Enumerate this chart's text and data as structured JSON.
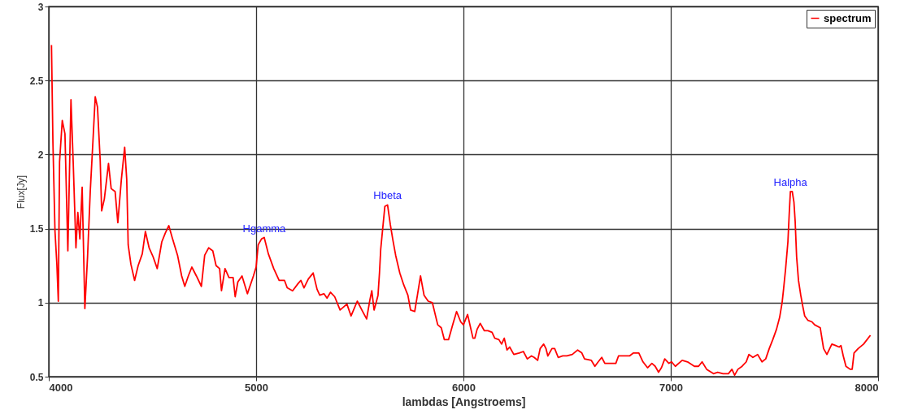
{
  "chart_data": {
    "type": "line",
    "xlabel": "lambdas  [Angstroems]",
    "ylabel": "Flux[Jy]",
    "xlim": [
      4000,
      8000
    ],
    "xticks": [
      4000,
      5000,
      6000,
      7000,
      8000
    ],
    "ylim": [
      0.5,
      3
    ],
    "yticks": [
      0.5,
      1,
      1.5,
      2,
      2.5,
      3
    ],
    "grid": true,
    "legend": "top right",
    "marker": "none",
    "line_style": "solid",
    "annotations": [
      {
        "text": "Hgamma",
        "x": 5039,
        "y": 1.44
      },
      {
        "text": "Hbeta",
        "x": 5634,
        "y": 1.66
      },
      {
        "text": "Halpha",
        "x": 7577,
        "y": 1.75
      }
    ],
    "series": [
      {
        "name": "spectrum",
        "color": "#ff0000",
        "x": [
          4013,
          4020,
          4030,
          4039,
          4046,
          4052,
          4065,
          4078,
          4092,
          4107,
          4118,
          4131,
          4140,
          4150,
          4161,
          4174,
          4187,
          4200,
          4213,
          4224,
          4235,
          4248,
          4255,
          4268,
          4288,
          4301,
          4320,
          4333,
          4350,
          4366,
          4376,
          4383,
          4396,
          4414,
          4431,
          4451,
          4466,
          4484,
          4503,
          4523,
          4545,
          4562,
          4579,
          4595,
          4621,
          4641,
          4656,
          4673,
          4690,
          4712,
          4736,
          4752,
          4771,
          4791,
          4807,
          4824,
          4833,
          4850,
          4869,
          4889,
          4899,
          4912,
          4932,
          4958,
          4987,
          5000,
          5010,
          5026,
          5039,
          5059,
          5085,
          5111,
          5137,
          5150,
          5176,
          5203,
          5216,
          5231,
          5252,
          5275,
          5294,
          5307,
          5327,
          5342,
          5359,
          5379,
          5405,
          5438,
          5458,
          5488,
          5510,
          5533,
          5549,
          5558,
          5569,
          5579,
          5588,
          5595,
          5601,
          5612,
          5621,
          5634,
          5647,
          5660,
          5673,
          5693,
          5712,
          5732,
          5745,
          5765,
          5778,
          5793,
          5810,
          5830,
          5850,
          5876,
          5893,
          5908,
          5928,
          5948,
          5967,
          5987,
          6000,
          6020,
          6046,
          6055,
          6066,
          6081,
          6101,
          6118,
          6138,
          6151,
          6171,
          6184,
          6197,
          6210,
          6223,
          6243,
          6269,
          6289,
          6308,
          6328,
          6341,
          6358,
          6370,
          6387,
          6398,
          6407,
          6427,
          6440,
          6457,
          6479,
          6499,
          6525,
          6551,
          6571,
          6584,
          6617,
          6634,
          6650,
          6667,
          6682,
          6709,
          6735,
          6748,
          6774,
          6801,
          6820,
          6846,
          6866,
          6888,
          6909,
          6925,
          6941,
          6955,
          6971,
          6991,
          7004,
          7022,
          7055,
          7081,
          7114,
          7134,
          7151,
          7173,
          7206,
          7226,
          7252,
          7278,
          7295,
          7308,
          7324,
          7344,
          7364,
          7377,
          7396,
          7419,
          7440,
          7458,
          7475,
          7492,
          7510,
          7525,
          7537,
          7544,
          7554,
          7565,
          7571,
          7577,
          7586,
          7594,
          7600,
          7607,
          7616,
          7627,
          7636,
          7646,
          7662,
          7681,
          7694,
          7721,
          7737,
          7753,
          7777,
          7795,
          7812,
          7821,
          7832,
          7845,
          7865,
          7875,
          7884,
          7904,
          7930,
          7963
        ],
        "values": [
          2.74,
          2.08,
          1.48,
          1.26,
          1.01,
          1.95,
          2.23,
          2.14,
          1.35,
          2.37,
          1.94,
          1.37,
          1.61,
          1.43,
          1.78,
          0.96,
          1.31,
          1.75,
          2.09,
          2.39,
          2.32,
          1.96,
          1.62,
          1.7,
          1.94,
          1.77,
          1.75,
          1.54,
          1.83,
          2.05,
          1.83,
          1.39,
          1.26,
          1.15,
          1.25,
          1.33,
          1.48,
          1.37,
          1.31,
          1.23,
          1.41,
          1.47,
          1.52,
          1.44,
          1.32,
          1.18,
          1.11,
          1.18,
          1.24,
          1.18,
          1.11,
          1.32,
          1.37,
          1.35,
          1.25,
          1.23,
          1.08,
          1.23,
          1.17,
          1.17,
          1.04,
          1.14,
          1.18,
          1.06,
          1.18,
          1.24,
          1.39,
          1.43,
          1.44,
          1.33,
          1.23,
          1.15,
          1.15,
          1.1,
          1.08,
          1.13,
          1.15,
          1.1,
          1.16,
          1.2,
          1.09,
          1.05,
          1.06,
          1.03,
          1.07,
          1.04,
          0.95,
          0.99,
          0.91,
          1.01,
          0.95,
          0.89,
          1.02,
          1.08,
          0.95,
          1.0,
          1.05,
          1.2,
          1.36,
          1.52,
          1.65,
          1.66,
          1.53,
          1.42,
          1.32,
          1.2,
          1.12,
          1.05,
          0.95,
          0.94,
          1.05,
          1.18,
          1.05,
          1.01,
          1.0,
          0.85,
          0.83,
          0.75,
          0.75,
          0.85,
          0.94,
          0.87,
          0.85,
          0.92,
          0.76,
          0.76,
          0.82,
          0.86,
          0.81,
          0.81,
          0.8,
          0.76,
          0.75,
          0.72,
          0.76,
          0.68,
          0.7,
          0.65,
          0.66,
          0.67,
          0.62,
          0.64,
          0.63,
          0.61,
          0.69,
          0.72,
          0.69,
          0.64,
          0.69,
          0.69,
          0.63,
          0.64,
          0.64,
          0.65,
          0.68,
          0.66,
          0.62,
          0.61,
          0.57,
          0.6,
          0.63,
          0.59,
          0.59,
          0.59,
          0.64,
          0.64,
          0.64,
          0.66,
          0.66,
          0.6,
          0.56,
          0.59,
          0.57,
          0.53,
          0.56,
          0.62,
          0.59,
          0.6,
          0.57,
          0.61,
          0.6,
          0.57,
          0.57,
          0.6,
          0.55,
          0.52,
          0.53,
          0.52,
          0.52,
          0.55,
          0.51,
          0.55,
          0.57,
          0.6,
          0.65,
          0.63,
          0.65,
          0.6,
          0.62,
          0.69,
          0.75,
          0.82,
          0.9,
          1.0,
          1.09,
          1.23,
          1.41,
          1.59,
          1.75,
          1.75,
          1.68,
          1.55,
          1.31,
          1.15,
          1.05,
          0.98,
          0.91,
          0.88,
          0.87,
          0.85,
          0.83,
          0.69,
          0.65,
          0.72,
          0.71,
          0.7,
          0.71,
          0.64,
          0.57,
          0.55,
          0.55,
          0.66,
          0.69,
          0.72,
          0.78
        ]
      }
    ]
  }
}
